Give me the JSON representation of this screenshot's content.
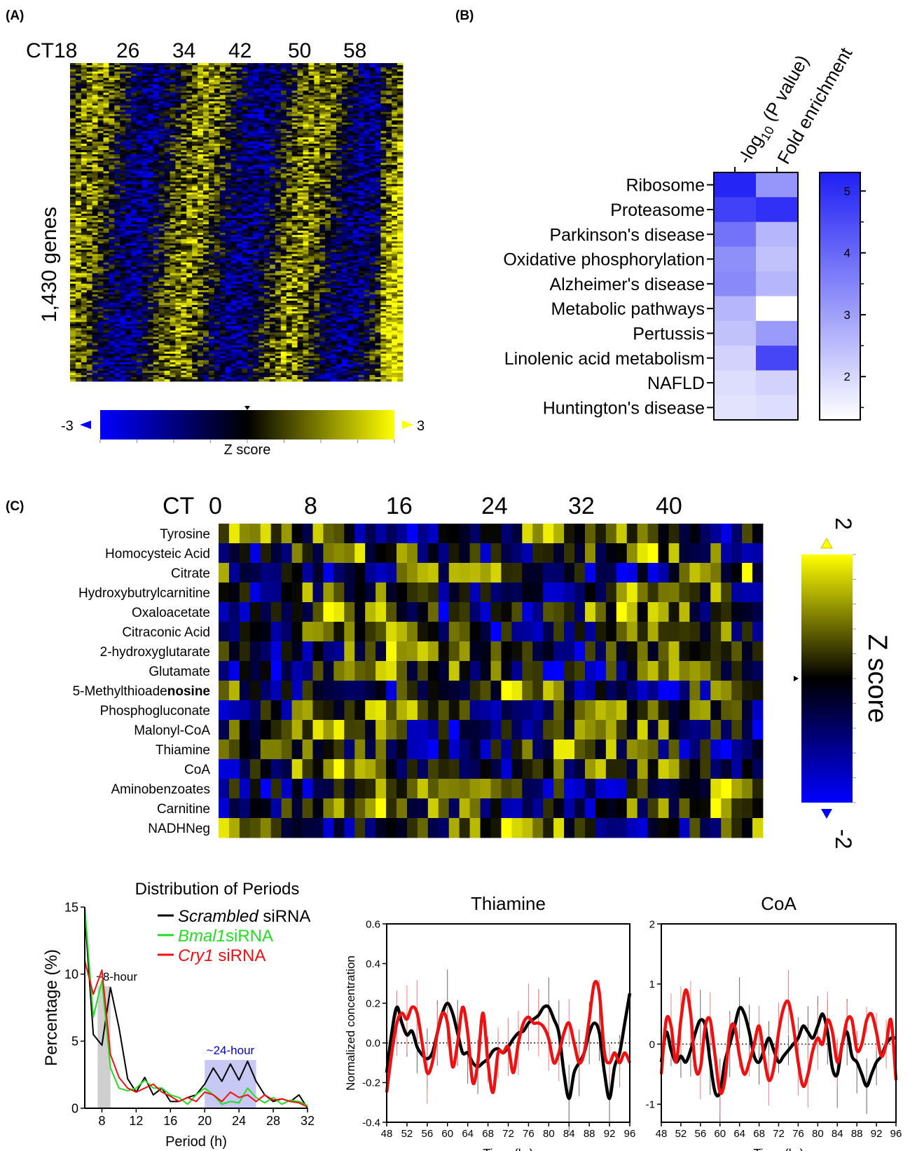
{
  "colors": {
    "blue": "#0000ff",
    "black": "#000000",
    "yellow": "#ffff00",
    "green": "#22dd22",
    "red": "#ee1111",
    "gray_band": "#cfcfcf",
    "lavender_band": "#c8c8f4"
  },
  "panel_A": {
    "label": "(A)",
    "ct_labels": [
      "CT18",
      "26",
      "34",
      "42",
      "50",
      "58"
    ],
    "row_label": "1,430 genes",
    "colorbar": {
      "min_label": "-3",
      "max_label": "3",
      "title": "Z score"
    }
  },
  "panel_B": {
    "label": "(B)",
    "column_headers": [
      "Fold enrichment"
    ],
    "pval_label": {
      "prefix": "-log",
      "sub": "10",
      "suffix": " (P value)"
    },
    "rows": [
      "Ribosome",
      "Proteasome",
      "Parkinson's disease",
      "Oxidative phosphorylation",
      "Alzheimer's disease",
      "Metabolic pathways",
      "Pertussis",
      "Linolenic acid metabolism",
      "NAFLD",
      "Huntington's disease"
    ],
    "colorbar": {
      "ticks": [
        "5",
        "4",
        "3",
        "2"
      ]
    }
  },
  "panel_C": {
    "label": "(C)",
    "ct_labels": [
      "CT",
      "0",
      "8",
      "16",
      "24",
      "32",
      "40"
    ],
    "rows": [
      "Tyrosine",
      "Homocysteic Acid",
      "Citrate",
      "Hydroxybutrylcarnitine",
      "Oxaloacetate",
      "Citraconic Acid",
      "2-hydroxyglutarate",
      "Glutamate",
      "5-Methylthioadenosine",
      "Phosphogluconate",
      "Malonyl-CoA",
      "Thiamine",
      "CoA",
      "Aminobenzoates",
      "Carnitine",
      "NADHNeg"
    ],
    "row_bold_suffix": {
      "row": "5-Methylthioadenosine",
      "plain": "5-Methylthioade",
      "bold": "nosine"
    },
    "colorbar": {
      "max_label": "2",
      "min_label": "-2",
      "title": "Z score"
    }
  },
  "chart_data": [
    {
      "type": "heatmap",
      "name": "A",
      "column_labels": [
        "CT18",
        "26",
        "34",
        "42",
        "50",
        "58"
      ],
      "ylabel": "1,430 genes",
      "color_scale": {
        "min": -3,
        "max": 3,
        "title": "Z score"
      }
    },
    {
      "type": "heatmap",
      "name": "B",
      "columns": [
        "-log10 (P value)",
        "Fold enrichment"
      ],
      "rows": [
        "Ribosome",
        "Proteasome",
        "Parkinson's disease",
        "Oxidative phosphorylation",
        "Alzheimer's disease",
        "Metabolic pathways",
        "Pertussis",
        "Linolenic acid metabolism",
        "NAFLD",
        "Huntington's disease"
      ],
      "values": [
        [
          5.2,
          3.2
        ],
        [
          4.7,
          5.0
        ],
        [
          3.8,
          2.6
        ],
        [
          3.3,
          2.4
        ],
        [
          3.4,
          2.6
        ],
        [
          2.6,
          1.3
        ],
        [
          2.4,
          3.1
        ],
        [
          2.1,
          4.6
        ],
        [
          1.9,
          2.1
        ],
        [
          1.8,
          1.9
        ]
      ],
      "color_scale": {
        "min": 1.3,
        "max": 5.3,
        "ticks": [
          2,
          3,
          4,
          5
        ]
      }
    },
    {
      "type": "heatmap",
      "name": "C",
      "rows": [
        "Tyrosine",
        "Homocysteic Acid",
        "Citrate",
        "Hydroxybutrylcarnitine",
        "Oxaloacetate",
        "Citraconic Acid",
        "2-hydroxyglutarate",
        "Glutamate",
        "5-Methylthioadenosine",
        "Phosphogluconate",
        "Malonyl-CoA",
        "Thiamine",
        "CoA",
        "Aminobenzoates",
        "Carnitine",
        "NADHNeg"
      ],
      "column_labels": [
        "0",
        "8",
        "16",
        "24",
        "32",
        "40"
      ],
      "color_scale": {
        "min": -2,
        "max": 2,
        "title": "Z score"
      }
    },
    {
      "type": "line",
      "name": "Distribution of Periods",
      "title": "Distribution of Periods",
      "xlabel": "Period (h)",
      "ylabel": "Percentage (%)",
      "xlim": [
        6,
        32
      ],
      "ylim": [
        0,
        15
      ],
      "xticks": [
        8,
        12,
        16,
        20,
        24,
        28,
        32
      ],
      "yticks": [
        0,
        5,
        10,
        15
      ],
      "bands": [
        {
          "x": [
            7.5,
            9
          ],
          "label": "~8-hour"
        },
        {
          "x": [
            20,
            26
          ],
          "label": "~24-hour"
        }
      ],
      "x": [
        6,
        7,
        8,
        9,
        10,
        11,
        12,
        13,
        14,
        15,
        16,
        17,
        18,
        19,
        20,
        21,
        22,
        23,
        24,
        25,
        26,
        27,
        28,
        29,
        30,
        31,
        32
      ],
      "series": [
        {
          "name": "Scrambled siRNA",
          "values": [
            14.5,
            5.5,
            4.7,
            9.0,
            6.0,
            2.2,
            1.2,
            2.3,
            1.0,
            1.5,
            0.5,
            0.5,
            0.8,
            1.0,
            1.8,
            3.0,
            2.0,
            3.3,
            2.1,
            3.5,
            2.0,
            1.0,
            0.5,
            0.7,
            0.5,
            1.0,
            0.0
          ]
        },
        {
          "name": "Bmal1siRNA",
          "values": [
            15.0,
            6.8,
            9.5,
            3.0,
            1.5,
            1.3,
            1.5,
            2.1,
            1.5,
            1.5,
            1.0,
            0.8,
            0.3,
            1.0,
            1.5,
            1.0,
            0.3,
            0.5,
            0.4,
            1.5,
            0.8,
            0.4,
            0.8,
            0.3,
            0.6,
            0.5,
            0.2
          ]
        },
        {
          "name": "Cry1 siRNA",
          "values": [
            11.0,
            8.5,
            10.3,
            4.0,
            2.3,
            1.5,
            1.2,
            1.5,
            1.8,
            1.2,
            0.9,
            0.5,
            0.8,
            0.5,
            1.2,
            1.0,
            0.5,
            1.2,
            0.8,
            1.0,
            0.5,
            1.0,
            0.6,
            0.7,
            0.5,
            0.4,
            0.1
          ]
        }
      ],
      "legend": "top-right"
    },
    {
      "type": "line",
      "name": "Thiamine",
      "title": "Thiamine",
      "xlabel": "Time (hr)",
      "ylabel": "Normalized concentration",
      "xlim": [
        48,
        96
      ],
      "ylim": [
        -0.4,
        0.6
      ],
      "xticks": [
        48,
        52,
        56,
        60,
        64,
        68,
        72,
        76,
        80,
        84,
        88,
        92,
        96
      ],
      "yticks": [
        -0.4,
        -0.2,
        0.0,
        0.2,
        0.4,
        0.6
      ],
      "x": [
        48,
        49,
        50,
        51,
        52,
        53,
        54,
        55,
        56,
        57,
        58,
        59,
        60,
        61,
        62,
        63,
        64,
        65,
        66,
        67,
        68,
        69,
        70,
        71,
        72,
        73,
        74,
        75,
        76,
        77,
        78,
        79,
        80,
        81,
        82,
        83,
        84,
        85,
        86,
        87,
        88,
        89,
        90,
        91,
        92,
        93,
        94,
        95,
        96
      ],
      "series": [
        {
          "name": "black",
          "values": [
            -0.15,
            0.05,
            0.18,
            0.1,
            0.04,
            0.06,
            -0.02,
            -0.06,
            -0.08,
            -0.05,
            0.05,
            0.15,
            0.2,
            0.15,
            0.05,
            -0.05,
            -0.05,
            -0.1,
            -0.12,
            -0.1,
            -0.08,
            -0.04,
            -0.03,
            -0.05,
            -0.02,
            0.02,
            0.05,
            0.06,
            0.1,
            0.12,
            0.14,
            0.18,
            0.18,
            0.12,
            0.05,
            -0.15,
            -0.28,
            -0.15,
            -0.1,
            -0.05,
            0.05,
            0.1,
            0.05,
            -0.15,
            -0.28,
            -0.12,
            -0.05,
            0.1,
            0.25
          ]
        },
        {
          "name": "red",
          "values": [
            -0.25,
            -0.05,
            0.1,
            0.15,
            0.12,
            0.18,
            0.15,
            0.0,
            -0.15,
            -0.1,
            0.05,
            0.15,
            0.1,
            -0.12,
            0.0,
            0.18,
            0.05,
            -0.2,
            -0.1,
            0.15,
            -0.1,
            -0.25,
            -0.05,
            -0.05,
            -0.02,
            -0.15,
            0.0,
            0.1,
            0.13,
            0.1,
            0.1,
            0.08,
            0.02,
            -0.1,
            -0.05,
            0.05,
            0.1,
            0.0,
            -0.1,
            -0.05,
            0.12,
            0.3,
            0.25,
            -0.05,
            -0.1,
            -0.05,
            -0.1,
            -0.05,
            -0.1
          ]
        }
      ]
    },
    {
      "type": "line",
      "name": "CoA",
      "title": "CoA",
      "xlabel": "Time (hr)",
      "xlim": [
        48,
        96
      ],
      "ylim": [
        -1.3,
        2
      ],
      "xticks": [
        48,
        52,
        56,
        60,
        64,
        68,
        72,
        76,
        80,
        84,
        88,
        92,
        96
      ],
      "yticks": [
        -1,
        0,
        1,
        2
      ],
      "x": [
        48,
        49,
        50,
        51,
        52,
        53,
        54,
        55,
        56,
        57,
        58,
        59,
        60,
        61,
        62,
        63,
        64,
        65,
        66,
        67,
        68,
        69,
        70,
        71,
        72,
        73,
        74,
        75,
        76,
        77,
        78,
        79,
        80,
        81,
        82,
        83,
        84,
        85,
        86,
        87,
        88,
        89,
        90,
        91,
        92,
        93,
        94,
        95,
        96
      ],
      "series": [
        {
          "name": "black",
          "values": [
            -0.3,
            0.2,
            -0.1,
            -0.3,
            -0.2,
            -0.3,
            -0.1,
            0.2,
            0.4,
            0.3,
            -0.3,
            -0.8,
            -0.8,
            -0.3,
            0.0,
            0.3,
            0.6,
            0.5,
            0.2,
            -0.2,
            -0.3,
            -0.1,
            0.1,
            -0.1,
            -0.3,
            -0.2,
            -0.1,
            0.0,
            0.1,
            0.3,
            0.2,
            0.1,
            0.3,
            0.5,
            0.2,
            -0.4,
            -0.5,
            0.0,
            0.2,
            -0.2,
            -0.3,
            -0.5,
            -0.7,
            -0.5,
            -0.3,
            -0.2,
            0.0,
            0.1,
            0.1
          ]
        },
        {
          "name": "red",
          "values": [
            -0.5,
            0.4,
            0.3,
            -0.3,
            0.4,
            0.9,
            0.5,
            -0.4,
            -0.4,
            0.3,
            0.4,
            -0.2,
            -0.8,
            -0.6,
            0.2,
            0.3,
            -0.2,
            -0.5,
            -0.3,
            0.0,
            0.3,
            -0.2,
            -0.6,
            -0.4,
            0.2,
            0.6,
            0.7,
            0.3,
            -0.3,
            -0.7,
            -0.5,
            -0.1,
            0.1,
            0.0,
            0.4,
            0.2,
            -0.3,
            0.0,
            0.4,
            0.4,
            -0.1,
            0.0,
            0.4,
            0.5,
            0.2,
            -0.2,
            0.0,
            0.4,
            -0.6
          ]
        }
      ]
    }
  ]
}
